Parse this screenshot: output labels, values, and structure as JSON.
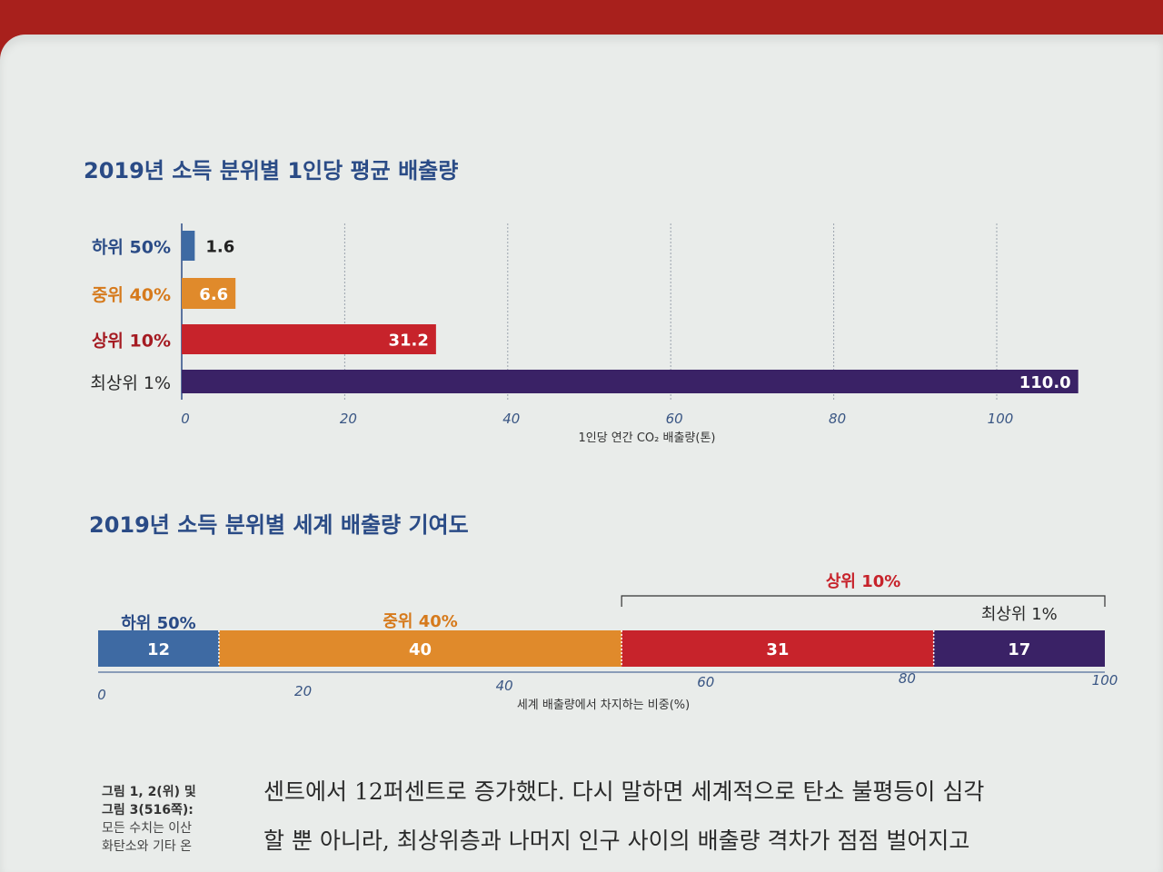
{
  "chart_data": [
    {
      "type": "bar",
      "orientation": "horizontal",
      "title": "2019년 소득 분위별 1인당 평균 배출량",
      "categories": [
        "하위 50%",
        "중위 40%",
        "상위 10%",
        "최상위 1%"
      ],
      "values": [
        1.6,
        6.6,
        31.2,
        110.0
      ],
      "value_labels": [
        "1.6",
        "6.6",
        "31.2",
        "110.0"
      ],
      "colors": [
        "#3e6aa3",
        "#e08a2b",
        "#c7232b",
        "#3a2266"
      ],
      "label_colors": [
        "#2a4b86",
        "#d67a1c",
        "#a51b22",
        "#2a2a2a"
      ],
      "xlabel": "1인당 연간 CO₂ 배출량(톤)",
      "xlim": [
        0,
        110
      ],
      "xticks": [
        0,
        20,
        40,
        60,
        80,
        100
      ],
      "grid": true
    },
    {
      "type": "bar",
      "orientation": "stacked-horizontal",
      "title": "2019년 소득 분위별 세계 배출량 기여도",
      "categories": [
        "하위 50%",
        "중위 40%",
        "상위 10%",
        "최상위 1%"
      ],
      "segments": [
        12,
        40,
        31,
        17
      ],
      "segment_labels": [
        "12",
        "40",
        "31",
        "17"
      ],
      "colors": [
        "#3e6aa3",
        "#e08a2b",
        "#c7232b",
        "#3a2266"
      ],
      "label_colors": [
        "#2a4b86",
        "#d67a1c",
        "#c7232b",
        "#2a2a2a"
      ],
      "group_label": "상위 10%",
      "xlabel": "세계 배출량에서 차지하는 비중(%)",
      "xlim": [
        0,
        100
      ],
      "xticks": [
        0,
        20,
        40,
        60,
        80,
        100
      ]
    }
  ],
  "caption": {
    "line1": "그림 1, 2(위) 및",
    "line2": "그림 3(516쪽):",
    "line3": "모든 수치는 이산",
    "line4": "화탄소와 기타 온"
  },
  "body": {
    "line1": "센트에서 12퍼센트로 증가했다. 다시 말하면 세계적으로 탄소 불평등이 심각",
    "line2": "할 뿐 아니라, 최상위층과 나머지 인구 사이의 배출량 격차가 점점 벌어지고"
  }
}
